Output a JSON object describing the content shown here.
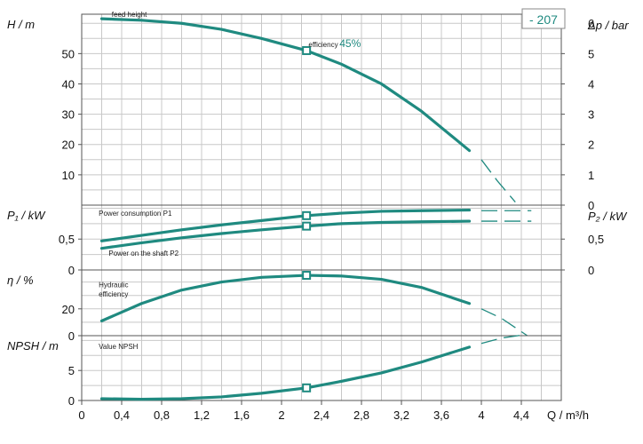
{
  "colors": {
    "curve": "#1f8a80",
    "grid": "#c8c8c8",
    "frame": "#555555",
    "badge_border": "#888888"
  },
  "badge": "- 207",
  "chart_data": {
    "type": "line",
    "x_axis": {
      "label": "Q / m³/h",
      "range": [
        0,
        4.8
      ],
      "ticks": [
        "0",
        "0,4",
        "0,8",
        "1,2",
        "1,6",
        "2",
        "2,4",
        "2,8",
        "3,2",
        "3,6",
        "4",
        "4,4"
      ],
      "tick_values": [
        0,
        0.4,
        0.8,
        1.2,
        1.6,
        2.0,
        2.4,
        2.8,
        3.2,
        3.6,
        4.0,
        4.4
      ]
    },
    "panels": [
      {
        "name": "head",
        "ylabel": "H  /  m",
        "ylim": [
          0,
          63
        ],
        "yticks": [
          "10",
          "20",
          "30",
          "40",
          "50"
        ],
        "ytick_values": [
          10,
          20,
          30,
          40,
          50
        ],
        "right_ylabel": "Δp  /  bar",
        "right_ylim": [
          0,
          6.3
        ],
        "right_yticks": [
          "0",
          "1",
          "2",
          "3",
          "4",
          "5",
          "6"
        ],
        "right_ytick_values": [
          0,
          1,
          2,
          3,
          4,
          5,
          6
        ],
        "series": [
          {
            "name": "feed height",
            "x": [
              0.2,
              0.6,
              1.0,
              1.4,
              1.8,
              2.25,
              2.6,
              3.0,
              3.4,
              3.88
            ],
            "y": [
              61.5,
              61.0,
              60.0,
              58.0,
              55.0,
              51.0,
              46.5,
              40.0,
              31.0,
              18.0
            ],
            "extension_x": [
              4.0,
              4.16,
              4.34
            ],
            "extension_y": [
              15.0,
              8.0,
              1.0
            ]
          }
        ],
        "annotations": [
          {
            "text": "feed height",
            "x": 0.3,
            "y": 63
          },
          {
            "text": "efficiency",
            "x": 2.27,
            "y": 53
          },
          {
            "text": "45%",
            "x": 2.58,
            "y": 53
          }
        ],
        "markers": [
          {
            "x": 2.25,
            "y": 51.0
          }
        ]
      },
      {
        "name": "power",
        "ylabel": "P₁  /  kW",
        "ylim": [
          0,
          1.05
        ],
        "yticks": [
          "0",
          "0,5"
        ],
        "ytick_values": [
          0,
          0.5
        ],
        "right_ylabel": "P₂  /  kW",
        "right_ylim": [
          0,
          1.05
        ],
        "right_yticks": [
          "0",
          "0,5"
        ],
        "right_ytick_values": [
          0,
          0.5
        ],
        "series": [
          {
            "name": "Power consumption P1",
            "x": [
              0.2,
              0.6,
              1.0,
              1.4,
              1.8,
              2.25,
              2.6,
              3.0,
              3.4,
              3.88
            ],
            "y": [
              0.47,
              0.56,
              0.65,
              0.73,
              0.8,
              0.88,
              0.92,
              0.95,
              0.96,
              0.97
            ],
            "extension_x": [
              4.0,
              4.5
            ],
            "extension_y": [
              0.96,
              0.96
            ]
          },
          {
            "name": "Power on the shaft  P2",
            "x": [
              0.2,
              0.6,
              1.0,
              1.4,
              1.8,
              2.25,
              2.6,
              3.0,
              3.4,
              3.88
            ],
            "y": [
              0.35,
              0.44,
              0.52,
              0.59,
              0.65,
              0.71,
              0.75,
              0.77,
              0.78,
              0.79
            ],
            "extension_x": [
              4.0,
              4.5
            ],
            "extension_y": [
              0.79,
              0.79
            ]
          }
        ],
        "annotations": [
          {
            "text": "Power consumption P1",
            "x": 0.17,
            "y": 0.92
          },
          {
            "text": "Power on the shaft  P2",
            "x": 0.27,
            "y": 0.27
          }
        ],
        "markers": [
          {
            "x": 2.25,
            "y": 0.88
          },
          {
            "x": 2.25,
            "y": 0.71
          }
        ]
      },
      {
        "name": "efficiency",
        "ylabel": "η  /  %",
        "ylim": [
          0,
          49
        ],
        "yticks": [
          "0",
          "20"
        ],
        "ytick_values": [
          0,
          20
        ],
        "series": [
          {
            "name": "Hydraulic efficiency",
            "x": [
              0.2,
              0.6,
              1.0,
              1.4,
              1.8,
              2.25,
              2.6,
              3.0,
              3.4,
              3.88
            ],
            "y": [
              11,
              24,
              34,
              40,
              43.5,
              45,
              44.5,
              42,
              36,
              24
            ],
            "extension_x": [
              4.0,
              4.2,
              4.46
            ],
            "extension_y": [
              20,
              13,
              0
            ]
          }
        ],
        "annotations": [
          {
            "text": "Hydraulic",
            "x": 0.17,
            "y": 38
          },
          {
            "text": "efficiency",
            "x": 0.17,
            "y": 31
          }
        ],
        "markers": [
          {
            "x": 2.25,
            "y": 45
          }
        ]
      },
      {
        "name": "npsh",
        "ylabel": "NPSH  /  m",
        "ylim": [
          0,
          10.8
        ],
        "yticks": [
          "0",
          "5"
        ],
        "ytick_values": [
          0,
          5
        ],
        "series": [
          {
            "name": "Value NPSH",
            "x": [
              0.2,
              0.6,
              1.0,
              1.4,
              1.8,
              2.25,
              2.6,
              3.0,
              3.4,
              3.88
            ],
            "y": [
              0.3,
              0.2,
              0.3,
              0.6,
              1.2,
              2.1,
              3.2,
              4.6,
              6.4,
              8.9
            ],
            "extension_x": [
              4.0,
              4.2,
              4.45
            ],
            "extension_y": [
              9.5,
              10.4,
              11.0
            ]
          }
        ],
        "annotations": [
          {
            "text": "Value NPSH",
            "x": 0.17,
            "y": 9.0
          }
        ],
        "markers": [
          {
            "x": 2.25,
            "y": 2.1
          }
        ]
      }
    ]
  }
}
